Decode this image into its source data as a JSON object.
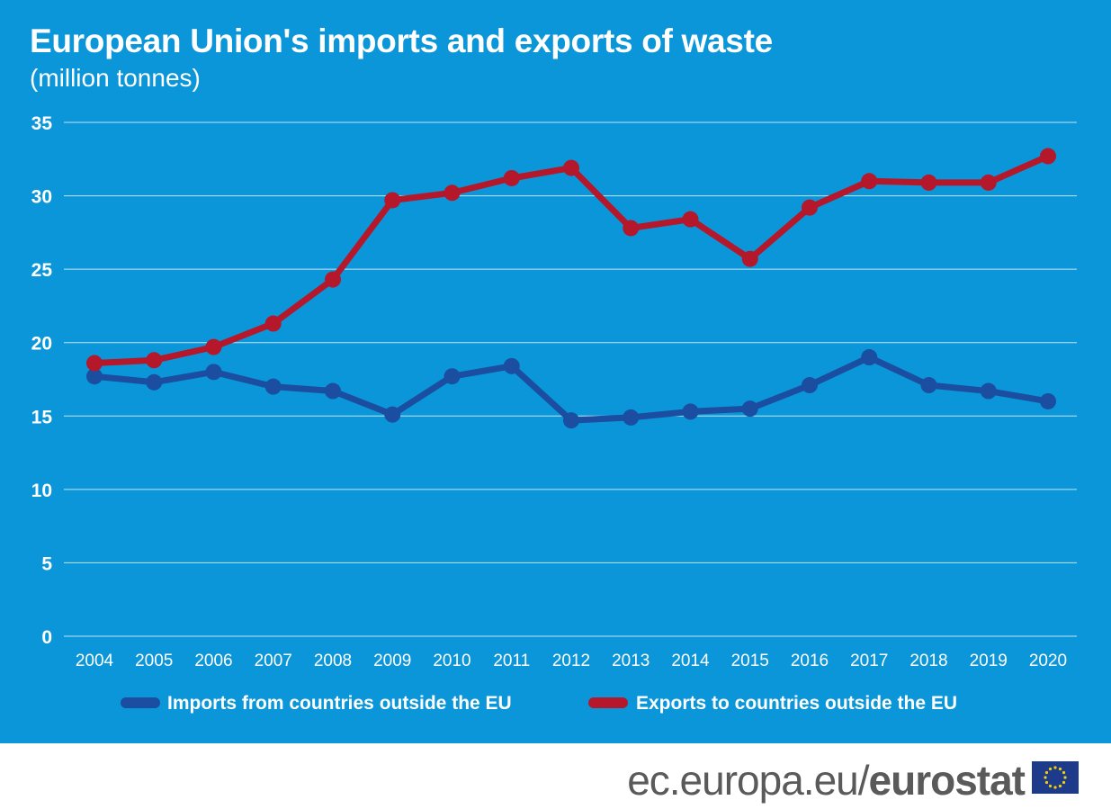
{
  "header": {
    "title": "European Union's imports and exports of waste",
    "subtitle": "(million tonnes)"
  },
  "footer": {
    "domain_text": "ec.europa.eu/",
    "brand_text": "eurostat",
    "flag_icon": "eu-flag-icon"
  },
  "colors": {
    "background": "#0b96d9",
    "imports": "#1b4ea0",
    "exports": "#b5182b",
    "grid": "#ffffff",
    "text": "#ffffff"
  },
  "chart_data": {
    "type": "line",
    "title": "European Union's imports and exports of waste",
    "subtitle": "(million tonnes)",
    "x": [
      "2004",
      "2005",
      "2006",
      "2007",
      "2008",
      "2009",
      "2010",
      "2011",
      "2012",
      "2013",
      "2014",
      "2015",
      "2016",
      "2017",
      "2018",
      "2019",
      "2020"
    ],
    "ylim": [
      0,
      35
    ],
    "yticks": [
      0,
      5,
      10,
      15,
      20,
      25,
      30,
      35
    ],
    "grid": true,
    "legend_position": "bottom",
    "series": [
      {
        "name": "Imports from countries outside the EU",
        "color": "#1b4ea0",
        "values": [
          17.7,
          17.3,
          18.0,
          17.0,
          16.7,
          15.1,
          17.7,
          18.4,
          14.7,
          14.9,
          15.3,
          15.5,
          17.1,
          19.0,
          17.1,
          16.7,
          16.0
        ]
      },
      {
        "name": "Exports to countries outside the EU",
        "color": "#b5182b",
        "values": [
          18.6,
          18.8,
          19.7,
          21.3,
          24.3,
          29.7,
          30.2,
          31.2,
          31.9,
          27.8,
          28.4,
          25.7,
          29.2,
          31.0,
          30.9,
          30.9,
          32.7
        ]
      }
    ]
  }
}
